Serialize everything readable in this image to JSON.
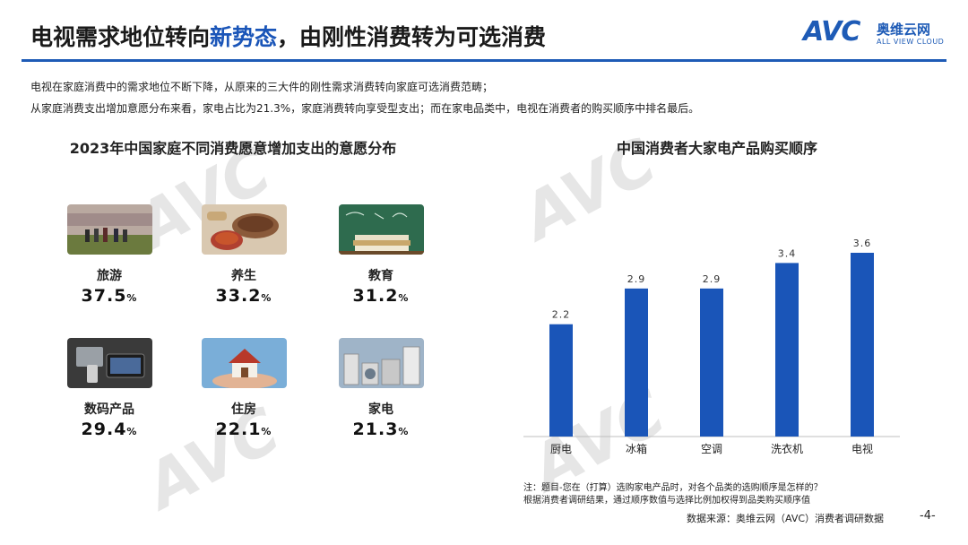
{
  "header": {
    "title_before": "电视需求地位转向",
    "title_highlight": "新势态",
    "title_after": "，由刚性消费转为可选消费",
    "brand_colors": {
      "primary": "#1e5bb6",
      "bar": "#1a55b8"
    }
  },
  "logo": {
    "mark": "AVC",
    "cn": "奥维云网",
    "en": "ALL VIEW CLOUD"
  },
  "description": [
    "电视在家庭消费中的需求地位不断下降，从原来的三大件的刚性需求消费转向家庭可选消费范畴；",
    "从家庭消费支出增加意愿分布来看，家电占比为21.3%，家庭消费转向享受型支出；而在家电品类中，电视在消费者的购买顺序中排名最后。"
  ],
  "left_panel": {
    "title": "2023年中国家庭不同消费愿意增加支出的意愿分布",
    "items": [
      {
        "label": "旅游",
        "value": "37.5",
        "unit": "%",
        "icon": "travel-photo"
      },
      {
        "label": "养生",
        "value": "33.2",
        "unit": "%",
        "icon": "health-food-photo"
      },
      {
        "label": "教育",
        "value": "31.2",
        "unit": "%",
        "icon": "books-photo"
      },
      {
        "label": "数码产品",
        "value": "29.4",
        "unit": "%",
        "icon": "digital-devices-photo"
      },
      {
        "label": "住房",
        "value": "22.1",
        "unit": "%",
        "icon": "house-in-hands-photo"
      },
      {
        "label": "家电",
        "value": "21.3",
        "unit": "%",
        "icon": "home-appliances-photo"
      }
    ]
  },
  "chart_data": {
    "type": "bar",
    "title": "中国消费者大家电产品购买顺序",
    "categories": [
      "厨电",
      "冰箱",
      "空调",
      "洗衣机",
      "电视"
    ],
    "values": [
      2.2,
      2.9,
      2.9,
      3.4,
      3.6
    ],
    "value_labels": [
      "2.2",
      "2.9",
      "2.9",
      "3.4",
      "3.6"
    ],
    "ylim": [
      0,
      4.2
    ],
    "grid": false,
    "color": "#1a55b8"
  },
  "notes": [
    "注：题目-您在（打算）选购家电产品时，对各个品类的选购顺序是怎样的？",
    "根据消费者调研结果，通过顺序数值与选择比例加权得到品类购买顺序值"
  ],
  "footer": {
    "source": "数据来源：奥维云网（AVC）消费者调研数据",
    "page": "-4-"
  }
}
